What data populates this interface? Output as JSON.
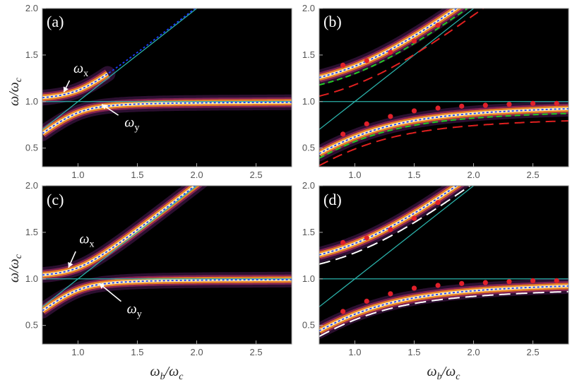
{
  "figure": {
    "xlabel": "ωb/ωc",
    "ylabel": "ω/ωc",
    "xlabel_parts": [
      "ω",
      "b",
      "/ω",
      "c"
    ],
    "ylabel_parts": [
      "ω/ω",
      "c"
    ],
    "colors": {
      "background": "#000000",
      "band_core": "#fff2c0",
      "band_mid": "#f08a20",
      "band_edge": "#7a2a8a",
      "asymptote": "#2ab0a8",
      "dotted_fit": "#1a3cff",
      "green_dashed": "#22cc22",
      "red_dashed": "#e02020",
      "white_dashed": "#ffffff",
      "points": "#e0202a"
    }
  },
  "chart_data": [
    {
      "type": "heatmap",
      "panel": "(a)",
      "xlim": [
        0.7,
        2.8
      ],
      "ylim": [
        0.3,
        2.0
      ],
      "xticks": [
        "1.0",
        "1.5",
        "2.0",
        "2.5"
      ],
      "yticks": [
        "0.5",
        "1.0",
        "1.5",
        "2.0"
      ],
      "parameters": {
        "g": 0.12,
        "omega_x_intercept": 1.0
      },
      "annotations": [
        {
          "text": "ω",
          "sub": "x",
          "at": [
            0.95,
            1.28
          ],
          "arrow_to": [
            0.88,
            1.1
          ]
        },
        {
          "text": "ω",
          "sub": "y",
          "at": [
            1.38,
            0.82
          ],
          "arrow_to": [
            1.2,
            0.97
          ]
        }
      ],
      "visible_branches": [
        "lower",
        "upper_partial"
      ],
      "overlays": [
        "asymptotes",
        "dotted_fit"
      ]
    },
    {
      "type": "heatmap",
      "panel": "(b)",
      "xlim": [
        0.7,
        2.8
      ],
      "ylim": [
        0.3,
        2.0
      ],
      "xticks": [
        "1.0",
        "1.5",
        "2.0",
        "2.5"
      ],
      "yticks": [
        "0.5",
        "1.0",
        "1.5",
        "2.0"
      ],
      "parameters": {
        "g": 0.38
      },
      "points": {
        "upper": {
          "x": [
            0.9,
            1.1,
            1.3,
            1.5,
            1.7
          ],
          "y": [
            1.39,
            1.44,
            1.53,
            1.65,
            1.82
          ]
        },
        "lower": {
          "x": [
            0.9,
            1.1,
            1.3,
            1.5,
            1.7,
            1.9,
            2.1,
            2.3,
            2.5,
            2.7
          ],
          "y": [
            0.65,
            0.76,
            0.84,
            0.9,
            0.93,
            0.95,
            0.96,
            0.97,
            0.98,
            0.98
          ]
        }
      },
      "visible_branches": [
        "lower",
        "upper"
      ],
      "overlays": [
        "asymptotes",
        "dotted_fit",
        "green_dashed",
        "red_dashed",
        "points"
      ]
    },
    {
      "type": "heatmap",
      "panel": "(c)",
      "xlim": [
        0.7,
        2.8
      ],
      "ylim": [
        0.3,
        2.0
      ],
      "xticks": [
        "1.0",
        "1.5",
        "2.0",
        "2.5"
      ],
      "yticks": [
        "0.5",
        "1.0",
        "1.5",
        "2.0"
      ],
      "parameters": {
        "g": 0.12
      },
      "annotations": [
        {
          "text": "ω",
          "sub": "x",
          "at": [
            1.0,
            1.35
          ],
          "arrow_to": [
            0.92,
            1.12
          ]
        },
        {
          "text": "ω",
          "sub": "y",
          "at": [
            1.4,
            0.72
          ],
          "arrow_to": [
            1.18,
            0.95
          ]
        }
      ],
      "visible_branches": [
        "lower",
        "upper"
      ],
      "overlays": [
        "asymptotes",
        "dotted_fit"
      ]
    },
    {
      "type": "heatmap",
      "panel": "(d)",
      "xlim": [
        0.7,
        2.8
      ],
      "ylim": [
        0.3,
        2.0
      ],
      "xticks": [
        "1.0",
        "1.5",
        "2.0",
        "2.5"
      ],
      "yticks": [
        "0.5",
        "1.0",
        "1.5",
        "2.0"
      ],
      "parameters": {
        "g": 0.38
      },
      "points": {
        "upper": {
          "x": [
            0.9,
            1.1,
            1.3,
            1.5,
            1.7
          ],
          "y": [
            1.39,
            1.44,
            1.53,
            1.65,
            1.82
          ]
        },
        "lower": {
          "x": [
            0.9,
            1.1,
            1.3,
            1.5,
            1.7,
            1.9,
            2.1,
            2.3,
            2.5,
            2.7
          ],
          "y": [
            0.65,
            0.76,
            0.84,
            0.9,
            0.93,
            0.95,
            0.96,
            0.97,
            0.98,
            0.98
          ]
        }
      },
      "visible_branches": [
        "lower",
        "upper"
      ],
      "overlays": [
        "asymptotes",
        "dotted_fit",
        "white_dashed",
        "points"
      ]
    }
  ]
}
